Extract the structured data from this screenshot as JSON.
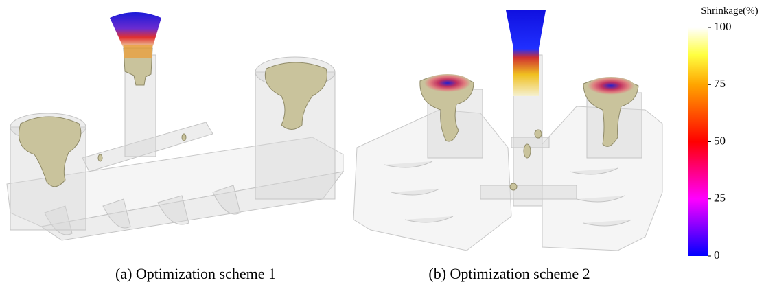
{
  "panels": [
    {
      "caption": "(a) Optimization scheme 1"
    },
    {
      "caption": "(b) Optimization scheme 2"
    }
  ],
  "colorbar": {
    "title": "Shrinkage(%)",
    "range": [
      0,
      100
    ],
    "ticks": [
      0,
      25,
      50,
      75,
      100
    ]
  }
}
